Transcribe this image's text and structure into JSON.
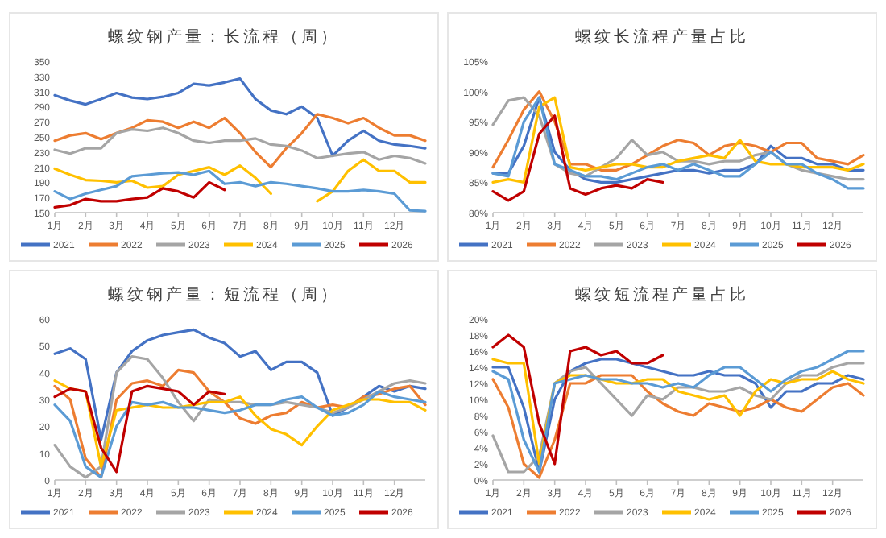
{
  "chart_data": [
    {
      "type": "line",
      "title": "螺纹钢产量：长流程（周）",
      "legend": "bottom",
      "x": [
        1,
        1.5,
        2,
        2.5,
        3,
        3.5,
        4,
        4.5,
        5,
        5.5,
        6,
        6.5,
        7,
        7.5,
        8,
        8.5,
        9,
        9.5,
        10,
        10.5,
        11,
        11.5,
        12,
        12.5,
        13
      ],
      "xlim": [
        1,
        13
      ],
      "xticks": [
        {
          "value": 1,
          "label": "1月"
        },
        {
          "value": 2,
          "label": "2月"
        },
        {
          "value": 3,
          "label": "3月"
        },
        {
          "value": 4,
          "label": "4月"
        },
        {
          "value": 5,
          "label": "5月"
        },
        {
          "value": 6,
          "label": "6月"
        },
        {
          "value": 7,
          "label": "7月"
        },
        {
          "value": 8,
          "label": "8月"
        },
        {
          "value": 9,
          "label": "9月"
        },
        {
          "value": 10,
          "label": "10月"
        },
        {
          "value": 11,
          "label": "11月"
        },
        {
          "value": 12,
          "label": "12月"
        }
      ],
      "ylim": [
        150,
        350
      ],
      "yticks": [
        150,
        170,
        190,
        210,
        230,
        250,
        270,
        290,
        310,
        330,
        350
      ],
      "series": [
        {
          "name": "2021",
          "color": "#4472c4",
          "values": [
            305,
            298,
            293,
            300,
            308,
            302,
            300,
            303,
            308,
            320,
            318,
            322,
            327,
            300,
            285,
            280,
            290,
            275,
            225,
            245,
            258,
            245,
            240,
            238,
            235
          ]
        },
        {
          "name": "2022",
          "color": "#ed7d31",
          "values": [
            245,
            252,
            255,
            247,
            255,
            262,
            272,
            270,
            262,
            270,
            262,
            275,
            255,
            230,
            210,
            235,
            255,
            280,
            275,
            268,
            275,
            262,
            252,
            252,
            245
          ]
        },
        {
          "name": "2023",
          "color": "#a5a5a5",
          "values": [
            233,
            228,
            235,
            235,
            255,
            260,
            258,
            262,
            255,
            245,
            242,
            245,
            245,
            248,
            240,
            238,
            232,
            222,
            225,
            228,
            230,
            220,
            225,
            222,
            215
          ]
        },
        {
          "name": "2024",
          "color": "#ffc000",
          "values": [
            208,
            200,
            193,
            192,
            190,
            192,
            183,
            185,
            200,
            205,
            210,
            200,
            212,
            196,
            175,
            null,
            null,
            165,
            178,
            205,
            220,
            205,
            205,
            190,
            190
          ]
        },
        {
          "name": "2025",
          "color": "#5b9bd5",
          "values": [
            178,
            168,
            175,
            180,
            185,
            198,
            200,
            202,
            203,
            200,
            205,
            188,
            190,
            185,
            190,
            188,
            185,
            182,
            178,
            178,
            180,
            178,
            175,
            153,
            152
          ]
        },
        {
          "name": "2026",
          "color": "#c00000",
          "values": [
            157,
            160,
            168,
            165,
            165,
            168,
            170,
            182,
            178,
            170,
            190,
            180,
            null,
            null,
            null,
            null,
            null,
            null,
            null,
            null,
            null,
            null,
            null,
            null,
            null
          ]
        }
      ]
    },
    {
      "type": "line",
      "title": "螺纹长流程产量占比",
      "legend": "bottom",
      "x": [
        1,
        1.5,
        2,
        2.5,
        3,
        3.5,
        4,
        4.5,
        5,
        5.5,
        6,
        6.5,
        7,
        7.5,
        8,
        8.5,
        9,
        9.5,
        10,
        10.5,
        11,
        11.5,
        12,
        12.5,
        13
      ],
      "xlim": [
        1,
        13
      ],
      "xticks": [
        {
          "value": 1,
          "label": "1月"
        },
        {
          "value": 2,
          "label": "2月"
        },
        {
          "value": 3,
          "label": "3月"
        },
        {
          "value": 4,
          "label": "4月"
        },
        {
          "value": 5,
          "label": "5月"
        },
        {
          "value": 6,
          "label": "6月"
        },
        {
          "value": 7,
          "label": "7月"
        },
        {
          "value": 8,
          "label": "8月"
        },
        {
          "value": 9,
          "label": "9月"
        },
        {
          "value": 10,
          "label": "10月"
        },
        {
          "value": 11,
          "label": "11月"
        },
        {
          "value": 12,
          "label": "12月"
        }
      ],
      "ylim": [
        80,
        105
      ],
      "yticks": [
        {
          "value": 80,
          "label": "80%"
        },
        {
          "value": 85,
          "label": "85%"
        },
        {
          "value": 90,
          "label": "90%"
        },
        {
          "value": 95,
          "label": "95%"
        },
        {
          "value": 100,
          "label": "100%"
        },
        {
          "value": 105,
          "label": "105%"
        }
      ],
      "series": [
        {
          "name": "2021",
          "color": "#4472c4",
          "values": [
            86.5,
            86.5,
            91,
            99,
            90,
            87,
            85.5,
            85,
            85,
            85.5,
            86,
            86.5,
            87,
            87,
            86.5,
            87,
            87,
            88,
            91,
            89,
            89,
            88,
            88,
            87,
            87
          ]
        },
        {
          "name": "2022",
          "color": "#ed7d31",
          "values": [
            87.5,
            92,
            97,
            100,
            95,
            88,
            88,
            87,
            87,
            88,
            89.5,
            91,
            92,
            91.5,
            89.5,
            91,
            91.5,
            91,
            90,
            91.5,
            91.5,
            89,
            88.5,
            88,
            89.5
          ]
        },
        {
          "name": "2023",
          "color": "#a5a5a5",
          "values": [
            94.5,
            98.5,
            99,
            96,
            88,
            86.5,
            86,
            87.5,
            89,
            92,
            89.5,
            90,
            88.5,
            88.5,
            88,
            88.5,
            88.5,
            89.5,
            90,
            88,
            87,
            86.5,
            86,
            85.5,
            85.5
          ]
        },
        {
          "name": "2024",
          "color": "#ffc000",
          "values": [
            85,
            85.5,
            85,
            97.5,
            99,
            87.5,
            87,
            87.5,
            88,
            88,
            87.5,
            87.5,
            88.5,
            89,
            89.5,
            89,
            92,
            88.5,
            88,
            88,
            87.5,
            87.5,
            87.5,
            87,
            88
          ]
        },
        {
          "name": "2025",
          "color": "#5b9bd5",
          "values": [
            86.5,
            86,
            95,
            99,
            88,
            87,
            86,
            86,
            85.5,
            86.5,
            87.5,
            88,
            87,
            88,
            87,
            86,
            86,
            88,
            90,
            88,
            88,
            86.5,
            85.5,
            84,
            84
          ]
        },
        {
          "name": "2026",
          "color": "#c00000",
          "values": [
            83.5,
            82,
            83.5,
            93,
            96,
            84,
            83,
            84,
            84.5,
            84,
            85.5,
            85,
            null,
            null,
            null,
            null,
            null,
            null,
            null,
            null,
            null,
            null,
            null,
            null,
            null
          ]
        }
      ]
    },
    {
      "type": "line",
      "title": "螺纹钢产量：短流程（周）",
      "legend": "bottom",
      "x": [
        1,
        1.5,
        2,
        2.5,
        3,
        3.5,
        4,
        4.5,
        5,
        5.5,
        6,
        6.5,
        7,
        7.5,
        8,
        8.5,
        9,
        9.5,
        10,
        10.5,
        11,
        11.5,
        12,
        12.5,
        13
      ],
      "xlim": [
        1,
        13
      ],
      "xticks": [
        {
          "value": 1,
          "label": "1月"
        },
        {
          "value": 2,
          "label": "2月"
        },
        {
          "value": 3,
          "label": "3月"
        },
        {
          "value": 4,
          "label": "4月"
        },
        {
          "value": 5,
          "label": "5月"
        },
        {
          "value": 6,
          "label": "6月"
        },
        {
          "value": 7,
          "label": "7月"
        },
        {
          "value": 8,
          "label": "8月"
        },
        {
          "value": 9,
          "label": "9月"
        },
        {
          "value": 10,
          "label": "10月"
        },
        {
          "value": 11,
          "label": "11月"
        },
        {
          "value": 12,
          "label": "12月"
        }
      ],
      "ylim": [
        0,
        60
      ],
      "yticks": [
        0,
        10,
        20,
        30,
        40,
        50,
        60
      ],
      "series": [
        {
          "name": "2021",
          "color": "#4472c4",
          "values": [
            47,
            49,
            45,
            15,
            40,
            48,
            52,
            54,
            55,
            56,
            53,
            51,
            46,
            48,
            41,
            44,
            44,
            40,
            24,
            27,
            31,
            35,
            33,
            35,
            34
          ]
        },
        {
          "name": "2022",
          "color": "#ed7d31",
          "values": [
            35,
            30,
            8,
            1,
            30,
            36,
            37,
            35,
            41,
            40,
            33,
            29,
            23,
            21,
            24,
            25,
            29,
            27,
            28,
            27,
            31,
            32,
            34,
            35,
            28
          ]
        },
        {
          "name": "2023",
          "color": "#a5a5a5",
          "values": [
            13,
            5,
            1,
            5,
            40,
            46,
            45,
            38,
            29,
            22,
            30,
            29,
            29,
            28,
            28,
            29,
            28,
            27,
            25,
            27,
            30,
            33,
            36,
            37,
            36
          ]
        },
        {
          "name": "2024",
          "color": "#ffc000",
          "values": [
            37,
            34,
            33,
            5,
            26,
            27,
            28,
            27,
            27,
            28,
            29,
            29,
            31,
            24,
            19,
            17,
            13,
            20,
            26,
            28,
            30,
            30,
            29,
            29,
            26
          ]
        },
        {
          "name": "2025",
          "color": "#5b9bd5",
          "values": [
            28,
            22,
            5,
            1,
            20,
            29,
            28,
            29,
            27,
            27,
            26,
            25,
            26,
            28,
            28,
            30,
            31,
            27,
            24,
            25,
            28,
            33,
            31,
            30,
            29
          ]
        },
        {
          "name": "2026",
          "color": "#c00000",
          "values": [
            31,
            34,
            33,
            12,
            3,
            33,
            35,
            34,
            33,
            28,
            33,
            32,
            null,
            null,
            null,
            null,
            null,
            null,
            null,
            null,
            null,
            null,
            null,
            null,
            null
          ]
        }
      ]
    },
    {
      "type": "line",
      "title": "螺纹短流程产量占比",
      "legend": "bottom",
      "x": [
        1,
        1.5,
        2,
        2.5,
        3,
        3.5,
        4,
        4.5,
        5,
        5.5,
        6,
        6.5,
        7,
        7.5,
        8,
        8.5,
        9,
        9.5,
        10,
        10.5,
        11,
        11.5,
        12,
        12.5,
        13
      ],
      "xlim": [
        1,
        13
      ],
      "xticks": [
        {
          "value": 1,
          "label": "1月"
        },
        {
          "value": 2,
          "label": "2月"
        },
        {
          "value": 3,
          "label": "3月"
        },
        {
          "value": 4,
          "label": "4月"
        },
        {
          "value": 5,
          "label": "5月"
        },
        {
          "value": 6,
          "label": "6月"
        },
        {
          "value": 7,
          "label": "7月"
        },
        {
          "value": 8,
          "label": "8月"
        },
        {
          "value": 9,
          "label": "9月"
        },
        {
          "value": 10,
          "label": "10月"
        },
        {
          "value": 11,
          "label": "11月"
        },
        {
          "value": 12,
          "label": "12月"
        }
      ],
      "ylim": [
        0,
        20
      ],
      "yticks": [
        {
          "value": 0,
          "label": "0%"
        },
        {
          "value": 2,
          "label": "2%"
        },
        {
          "value": 4,
          "label": "4%"
        },
        {
          "value": 6,
          "label": "6%"
        },
        {
          "value": 8,
          "label": "8%"
        },
        {
          "value": 10,
          "label": "10%"
        },
        {
          "value": 12,
          "label": "12%"
        },
        {
          "value": 14,
          "label": "14%"
        },
        {
          "value": 16,
          "label": "16%"
        },
        {
          "value": 18,
          "label": "18%"
        },
        {
          "value": 20,
          "label": "20%"
        }
      ],
      "series": [
        {
          "name": "2021",
          "color": "#4472c4",
          "values": [
            14,
            14,
            9,
            1,
            10,
            13.5,
            14.5,
            15,
            15,
            14.5,
            14,
            13.5,
            13,
            13,
            13.5,
            13,
            13,
            12,
            9,
            11,
            11,
            12,
            12,
            13,
            12.5
          ]
        },
        {
          "name": "2022",
          "color": "#ed7d31",
          "values": [
            12.5,
            9,
            2,
            0.3,
            5,
            12,
            12,
            13,
            13,
            13,
            11,
            9.5,
            8.5,
            8,
            9.5,
            9,
            8.5,
            9,
            10,
            9,
            8.5,
            10,
            11.5,
            12,
            10.5
          ]
        },
        {
          "name": "2023",
          "color": "#a5a5a5",
          "values": [
            5.5,
            1,
            1,
            3,
            12,
            13.5,
            14,
            12,
            10,
            8,
            10.5,
            10,
            11.5,
            11.5,
            11,
            11,
            11.5,
            10.5,
            10,
            12,
            13,
            13,
            14,
            14.5,
            14.5
          ]
        },
        {
          "name": "2024",
          "color": "#ffc000",
          "values": [
            15,
            14.5,
            14.5,
            2,
            12,
            13,
            13,
            12.5,
            12,
            12,
            12.5,
            12.5,
            11,
            10.5,
            10,
            10.5,
            8,
            11,
            12.5,
            12,
            12.5,
            12.5,
            13.5,
            12.5,
            12
          ]
        },
        {
          "name": "2025",
          "color": "#5b9bd5",
          "values": [
            13.5,
            12.5,
            5,
            1,
            12,
            12.5,
            13,
            12.5,
            12.5,
            12,
            12,
            11.5,
            12,
            11.5,
            13,
            14,
            14,
            12.5,
            11,
            12.5,
            13.5,
            14,
            15,
            16,
            16
          ]
        },
        {
          "name": "2026",
          "color": "#c00000",
          "values": [
            16.5,
            18,
            16.5,
            7,
            2,
            16,
            16.5,
            15.5,
            16,
            14.5,
            14.5,
            15.5,
            null,
            null,
            null,
            null,
            null,
            null,
            null,
            null,
            null,
            null,
            null,
            null,
            null
          ]
        }
      ]
    }
  ]
}
